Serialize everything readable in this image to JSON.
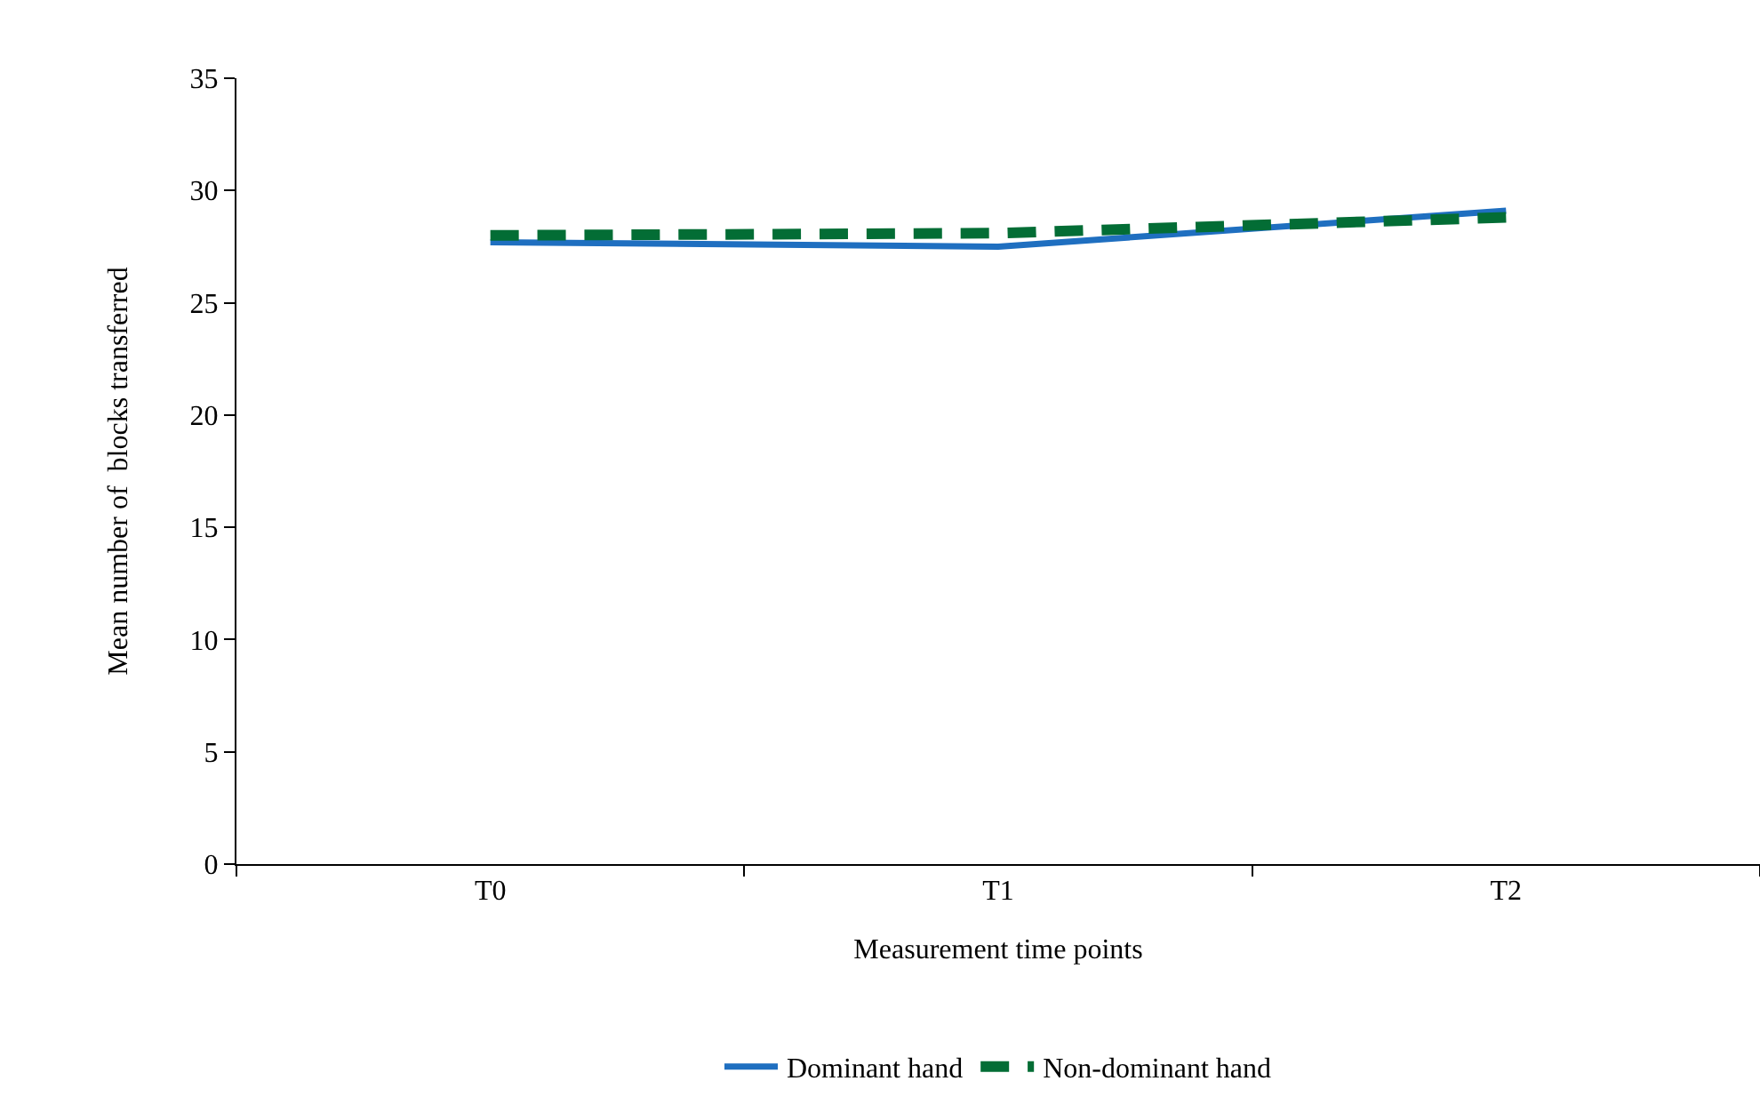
{
  "chart_data": {
    "type": "line",
    "xlabel": "Measurement time points",
    "ylabel": "Mean number of  blocks transferred",
    "categories": [
      "T0",
      "T1",
      "T2"
    ],
    "series": [
      {
        "name": "Dominant hand",
        "color": "#1f6fc0",
        "values": [
          27.7,
          27.5,
          29.1
        ],
        "line_style": "solid"
      },
      {
        "name": "Non-dominant hand",
        "color": "#036d35",
        "values": [
          28.0,
          28.1,
          28.8
        ],
        "line_style": "dashed"
      }
    ],
    "ylim": [
      0,
      35
    ],
    "yticks": [
      0,
      5,
      10,
      15,
      20,
      25,
      30,
      35
    ],
    "grid": false,
    "legend": "bottom",
    "marker": "none"
  }
}
